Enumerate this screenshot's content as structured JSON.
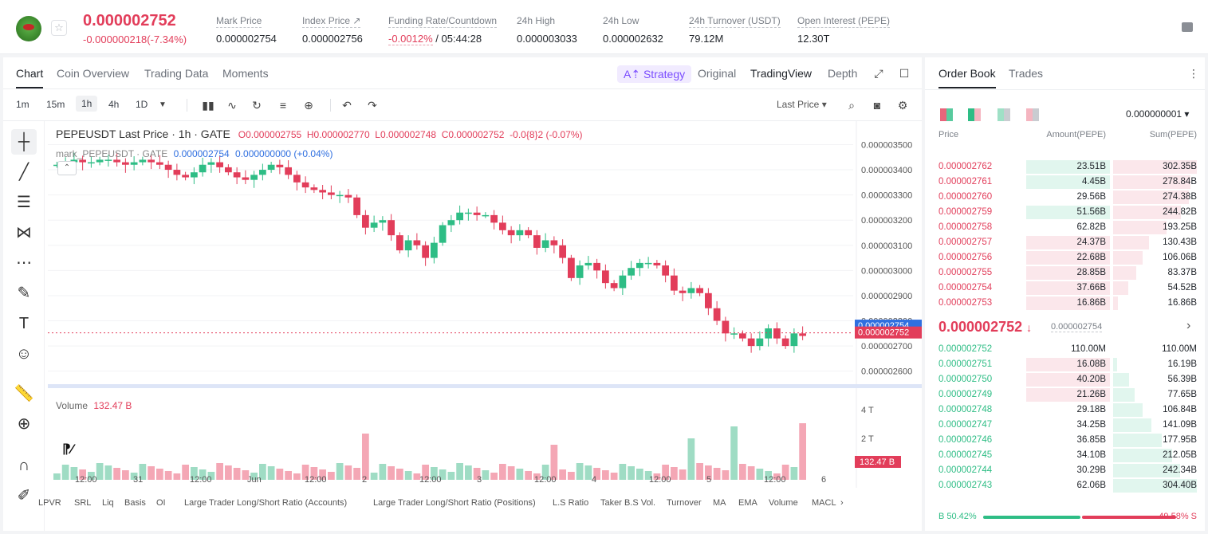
{
  "ticker": {
    "last_price": "0.000002752",
    "change": "-0.000000218(-7.34%)",
    "star_icon": "☆",
    "stats": [
      {
        "label": "Mark Price",
        "value": "0.000002754"
      },
      {
        "label": "Index Price ↗",
        "value": "0.000002756"
      },
      {
        "label": "Funding Rate/Countdown",
        "value": "-0.0012%",
        "value2": " / 05:44:28"
      },
      {
        "label": "24h High",
        "value": "0.000003033"
      },
      {
        "label": "24h Low",
        "value": "0.000002632"
      },
      {
        "label": "24h Turnover (USDT)",
        "value": "79.12M"
      },
      {
        "label": "Open Interest (PEPE)",
        "value": "12.30T"
      }
    ]
  },
  "chart_tabs": [
    "Chart",
    "Coin Overview",
    "Trading Data",
    "Moments"
  ],
  "strategy_label": "Strategy",
  "view_tabs": [
    "Original",
    "TradingView",
    "Depth"
  ],
  "timeframes": [
    "1m",
    "15m",
    "1h",
    "4h",
    "1D"
  ],
  "price_type": "Last Price ▾",
  "legend": {
    "symbol": "PEPEUSDT Last Price · 1h · GATE",
    "o_label": "O",
    "o": "0.000002755",
    "h_label": "H",
    "h": "0.000002770",
    "l_label": "L",
    "l": "0.000002748",
    "c_label": "C",
    "c": "0.000002752",
    "chg": "-0.0{8}2 (-0.07%)",
    "mark_name": "mark_PEPEUSDT · GATE",
    "mark_value": "0.000002754",
    "mark_chg": "0.000000000 (+0.04%)"
  },
  "volume_label": "Volume",
  "volume_value": "132.47 B",
  "chart_data": {
    "type": "candlestick",
    "y_ticks": [
      "0.000003500",
      "0.000003400",
      "0.000003300",
      "0.000003200",
      "0.000003100",
      "0.000003000",
      "0.000002900",
      "0.000002800",
      "0.000002700",
      "0.000002600"
    ],
    "price_ylim": [
      2.58e-06,
      3.53e-06
    ],
    "mark_price_tag": "0.000002754",
    "last_price_tag": "0.000002752",
    "volume_ticks": [
      "4 T",
      "2 T"
    ],
    "volume_tag": "132.47 B",
    "x_ticks": [
      "12:00",
      "31",
      "12:00",
      "Jun",
      "12:00",
      "2",
      "12:00",
      "3",
      "12:00",
      "4",
      "12:00",
      "5",
      "12:00",
      "6"
    ],
    "close_path": [
      3.42,
      3.43,
      3.44,
      3.43,
      3.43,
      3.44,
      3.44,
      3.43,
      3.42,
      3.43,
      3.44,
      3.43,
      3.42,
      3.4,
      3.38,
      3.37,
      3.39,
      3.42,
      3.43,
      3.41,
      3.39,
      3.37,
      3.36,
      3.38,
      3.4,
      3.42,
      3.41,
      3.38,
      3.35,
      3.33,
      3.32,
      3.31,
      3.3,
      3.3,
      3.29,
      3.22,
      3.17,
      3.19,
      3.2,
      3.14,
      3.08,
      3.12,
      3.1,
      3.05,
      3.11,
      3.18,
      3.2,
      3.23,
      3.23,
      3.22,
      3.22,
      3.19,
      3.16,
      3.14,
      3.16,
      3.14,
      3.09,
      3.12,
      3.1,
      3.05,
      2.97,
      3.02,
      3.03,
      3.0,
      2.95,
      2.93,
      2.98,
      3.01,
      3.03,
      3.03,
      3.02,
      2.98,
      2.92,
      2.91,
      2.93,
      2.91,
      2.85,
      2.8,
      2.75,
      2.75,
      2.73,
      2.7,
      2.73,
      2.77,
      2.73,
      2.7,
      2.75,
      2.74
    ]
  },
  "indicators": [
    "LPVR",
    "SRL",
    "Liq",
    "Basis",
    "OI",
    "Large Trader Long/Short Ratio (Accounts)",
    "Large Trader Long/Short Ratio (Positions)",
    "L.S Ratio",
    "Taker B.S Vol.",
    "Turnover",
    "MA",
    "EMA",
    "Volume",
    "MACL"
  ],
  "orderbook": {
    "tabs": [
      "Order Book",
      "Trades"
    ],
    "precision": "0.000000001 ▾",
    "headers": [
      "Price",
      "Amount(PEPE)",
      "Sum(PEPE)"
    ],
    "asks": [
      {
        "price": "0.000002762",
        "amount": "23.51B",
        "sum": "302.35B",
        "amt_frac": 0.75,
        "sum_frac": 1.0
      },
      {
        "price": "0.000002761",
        "amount": "4.45B",
        "sum": "278.84B",
        "amt_frac": 0.75,
        "sum_frac": 0.92
      },
      {
        "price": "0.000002760",
        "amount": "29.56B",
        "sum": "274.38B",
        "amt_frac": 0.0,
        "sum_frac": 0.9
      },
      {
        "price": "0.000002759",
        "amount": "51.56B",
        "sum": "244.82B",
        "amt_frac": 0.75,
        "sum_frac": 0.81
      },
      {
        "price": "0.000002758",
        "amount": "62.82B",
        "sum": "193.25B",
        "amt_frac": 0.0,
        "sum_frac": 0.64
      },
      {
        "price": "0.000002757",
        "amount": "24.37B",
        "sum": "130.43B",
        "amt_frac": 0.75,
        "sum_frac": 0.43
      },
      {
        "price": "0.000002756",
        "amount": "22.68B",
        "sum": "106.06B",
        "amt_frac": 0.75,
        "sum_frac": 0.35
      },
      {
        "price": "0.000002755",
        "amount": "28.85B",
        "sum": "83.37B",
        "amt_frac": 0.75,
        "sum_frac": 0.28
      },
      {
        "price": "0.000002754",
        "amount": "37.66B",
        "sum": "54.52B",
        "amt_frac": 0.75,
        "sum_frac": 0.18
      },
      {
        "price": "0.000002753",
        "amount": "16.86B",
        "sum": "16.86B",
        "amt_frac": 0.75,
        "sum_frac": 0.06
      }
    ],
    "mid_price": "0.000002752",
    "mid_mark": "0.000002754",
    "bids": [
      {
        "price": "0.000002752",
        "amount": "110.00M",
        "sum": "110.00M",
        "amt_frac": 0.0,
        "sum_frac": 0.0
      },
      {
        "price": "0.000002751",
        "amount": "16.08B",
        "sum": "16.19B",
        "amt_frac": 0.75,
        "sum_frac": 0.05
      },
      {
        "price": "0.000002750",
        "amount": "40.20B",
        "sum": "56.39B",
        "amt_frac": 0.75,
        "sum_frac": 0.19
      },
      {
        "price": "0.000002749",
        "amount": "21.26B",
        "sum": "77.65B",
        "amt_frac": 0.75,
        "sum_frac": 0.26
      },
      {
        "price": "0.000002748",
        "amount": "29.18B",
        "sum": "106.84B",
        "amt_frac": 0.0,
        "sum_frac": 0.35
      },
      {
        "price": "0.000002747",
        "amount": "34.25B",
        "sum": "141.09B",
        "amt_frac": 0.0,
        "sum_frac": 0.46
      },
      {
        "price": "0.000002746",
        "amount": "36.85B",
        "sum": "177.95B",
        "amt_frac": 0.0,
        "sum_frac": 0.58
      },
      {
        "price": "0.000002745",
        "amount": "34.10B",
        "sum": "212.05B",
        "amt_frac": 0.0,
        "sum_frac": 0.7
      },
      {
        "price": "0.000002744",
        "amount": "30.29B",
        "sum": "242.34B",
        "amt_frac": 0.0,
        "sum_frac": 0.8
      },
      {
        "price": "0.000002743",
        "amount": "62.06B",
        "sum": "304.40B",
        "amt_frac": 0.0,
        "sum_frac": 1.0
      }
    ],
    "buy_ratio": "B 50.42%",
    "sell_ratio": "49.58% S",
    "buy_frac": 0.5042
  },
  "colors": {
    "up": "#2ebd85",
    "down": "#e23d5a",
    "accent": "#7b4dff",
    "mark_tag": "#2f6fe0"
  }
}
